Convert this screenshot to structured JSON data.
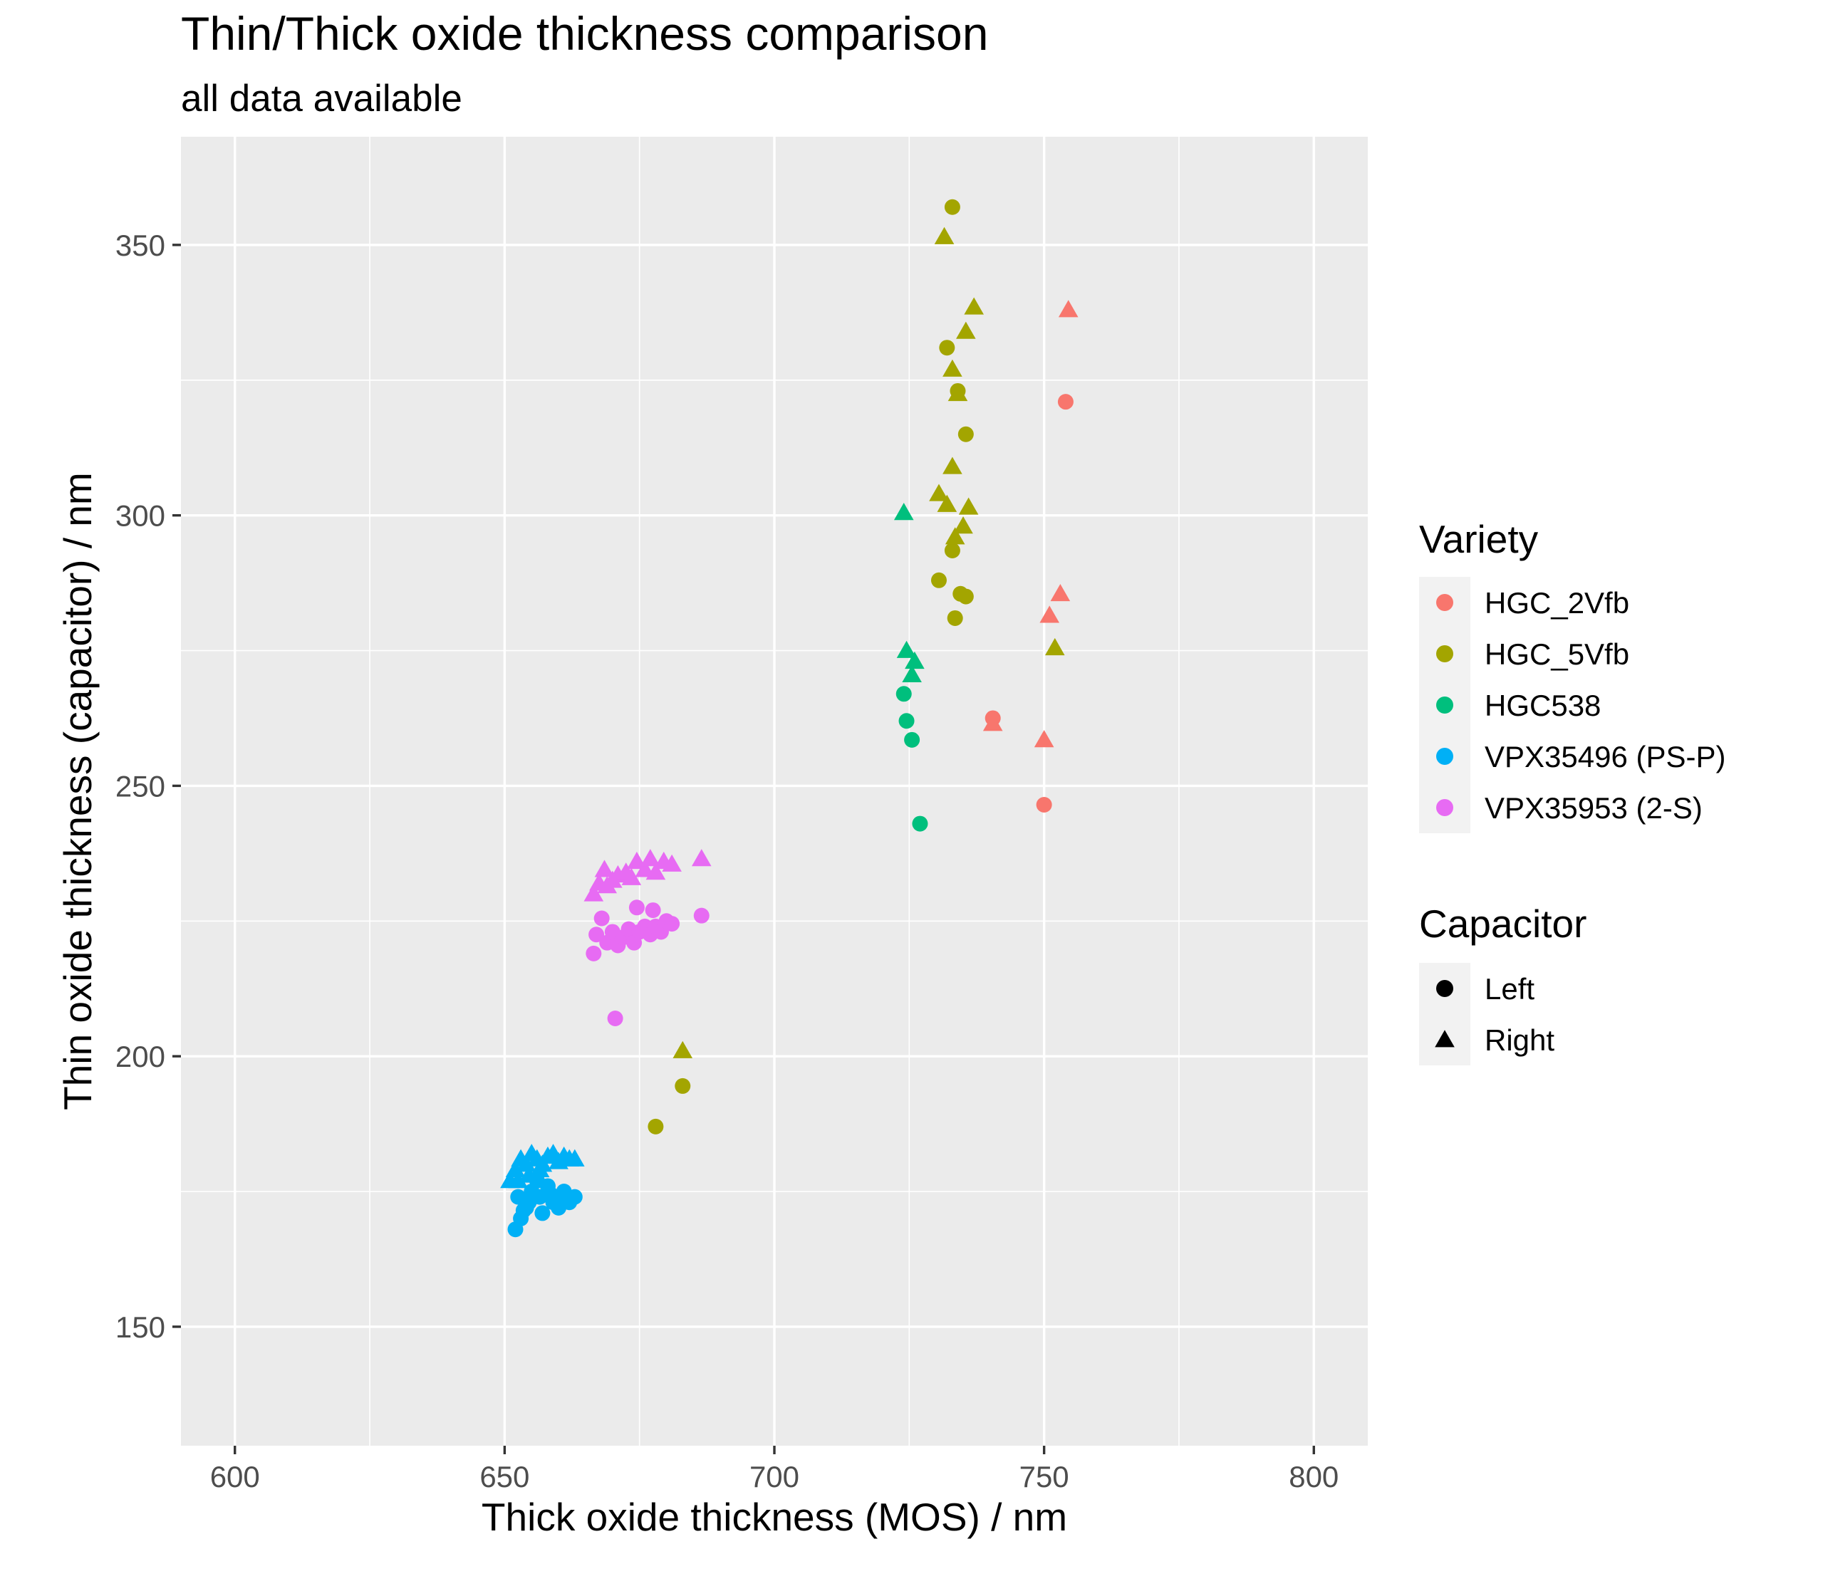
{
  "chart_data": {
    "type": "scatter",
    "title": "Thin/Thick oxide thickness comparison",
    "subtitle": "all data available",
    "xlabel": "Thick oxide thickness (MOS) / nm",
    "ylabel": "Thin oxide thickness (capacitor) / nm",
    "xlim": [
      590,
      810
    ],
    "ylim": [
      128,
      370
    ],
    "x_ticks": [
      600,
      650,
      700,
      750,
      800
    ],
    "y_ticks": [
      150,
      200,
      250,
      300,
      350
    ],
    "x_tick_labels": [
      "600",
      "650",
      "700",
      "750",
      "800"
    ],
    "y_tick_labels": [
      "150",
      "200",
      "250",
      "300",
      "350"
    ],
    "grid": true,
    "legend_position": "right",
    "legend_color_title": "Variety",
    "legend_shape_title": "Capacitor",
    "shape_legend": [
      {
        "label": "Left",
        "shape": "circle"
      },
      {
        "label": "Right",
        "shape": "triangle"
      }
    ],
    "series": [
      {
        "name": "HGC_2Vfb",
        "color": "#F8766D",
        "left": [
          [
            754,
            321
          ],
          [
            740.5,
            262.5
          ],
          [
            750,
            246.5
          ]
        ],
        "right": [
          [
            754.5,
            338
          ],
          [
            753,
            285.5
          ],
          [
            751,
            281.5
          ],
          [
            740.5,
            261.5
          ],
          [
            750,
            258.5
          ]
        ]
      },
      {
        "name": "HGC_5Vfb",
        "color": "#A3A500",
        "left": [
          [
            733,
            357
          ],
          [
            732,
            331
          ],
          [
            734,
            323
          ],
          [
            735.5,
            315
          ],
          [
            733,
            293.5
          ],
          [
            730.5,
            288
          ],
          [
            734.5,
            285.5
          ],
          [
            735.5,
            285
          ],
          [
            733.5,
            281
          ],
          [
            683,
            194.5
          ],
          [
            678,
            187
          ]
        ],
        "right": [
          [
            731.5,
            351.5
          ],
          [
            737,
            338.5
          ],
          [
            735.5,
            334
          ],
          [
            733,
            327
          ],
          [
            734,
            322.5
          ],
          [
            733,
            309
          ],
          [
            730.5,
            304
          ],
          [
            732,
            302
          ],
          [
            736,
            301.5
          ],
          [
            735,
            298
          ],
          [
            733.5,
            296
          ],
          [
            752,
            275.5
          ],
          [
            683,
            201
          ]
        ]
      },
      {
        "name": "HGC538",
        "color": "#00BF7D",
        "left": [
          [
            724,
            267
          ],
          [
            724.5,
            262
          ],
          [
            725.5,
            258.5
          ],
          [
            727,
            243
          ]
        ],
        "right": [
          [
            724,
            300.5
          ],
          [
            724.5,
            275
          ],
          [
            726,
            273
          ],
          [
            725.5,
            270.5
          ]
        ]
      },
      {
        "name": "VPX35496 (PS-P)",
        "color": "#00B0F6",
        "left": [
          [
            652,
            168
          ],
          [
            653,
            170
          ],
          [
            654,
            172
          ],
          [
            655,
            175
          ],
          [
            656,
            177
          ],
          [
            657,
            171
          ],
          [
            658,
            176
          ],
          [
            659,
            173
          ],
          [
            660,
            172
          ],
          [
            661,
            175
          ],
          [
            662,
            173
          ],
          [
            663,
            174
          ],
          [
            652.5,
            174
          ],
          [
            654.5,
            173
          ],
          [
            656.5,
            174
          ],
          [
            658.5,
            174.5
          ],
          [
            653.5,
            171.5
          ],
          [
            660.5,
            174
          ]
        ],
        "right": [
          [
            651,
            177
          ],
          [
            652,
            179
          ],
          [
            653,
            181
          ],
          [
            654,
            180
          ],
          [
            655,
            182
          ],
          [
            656,
            181
          ],
          [
            657,
            180
          ],
          [
            658,
            181.5
          ],
          [
            659,
            182
          ],
          [
            660,
            180.5
          ],
          [
            661,
            181.5
          ],
          [
            662,
            181
          ],
          [
            663,
            181
          ],
          [
            652.5,
            177
          ],
          [
            654.5,
            178
          ],
          [
            656.5,
            179
          ]
        ]
      },
      {
        "name": "VPX35953 (2-S)",
        "color": "#E76BF3",
        "left": [
          [
            666.5,
            219
          ],
          [
            667,
            222.5
          ],
          [
            668,
            225.5
          ],
          [
            669,
            221
          ],
          [
            670,
            223
          ],
          [
            671,
            220.5
          ],
          [
            672,
            222
          ],
          [
            673,
            223.5
          ],
          [
            674,
            221
          ],
          [
            674.5,
            227.5
          ],
          [
            675,
            223
          ],
          [
            676,
            224
          ],
          [
            677,
            222.5
          ],
          [
            677.5,
            227
          ],
          [
            678,
            224
          ],
          [
            679,
            223
          ],
          [
            680,
            225
          ],
          [
            681,
            224.5
          ],
          [
            686.5,
            226
          ],
          [
            670.5,
            207
          ]
        ],
        "right": [
          [
            666.5,
            230
          ],
          [
            667.5,
            232
          ],
          [
            668.5,
            234.5
          ],
          [
            670,
            232.5
          ],
          [
            671,
            233.5
          ],
          [
            672.5,
            234
          ],
          [
            673.5,
            233
          ],
          [
            674.5,
            236
          ],
          [
            676,
            234.5
          ],
          [
            677,
            236.5
          ],
          [
            678,
            234
          ],
          [
            679.5,
            236
          ],
          [
            681,
            235.5
          ],
          [
            686.5,
            236.5
          ],
          [
            669,
            231.5
          ]
        ]
      }
    ]
  }
}
